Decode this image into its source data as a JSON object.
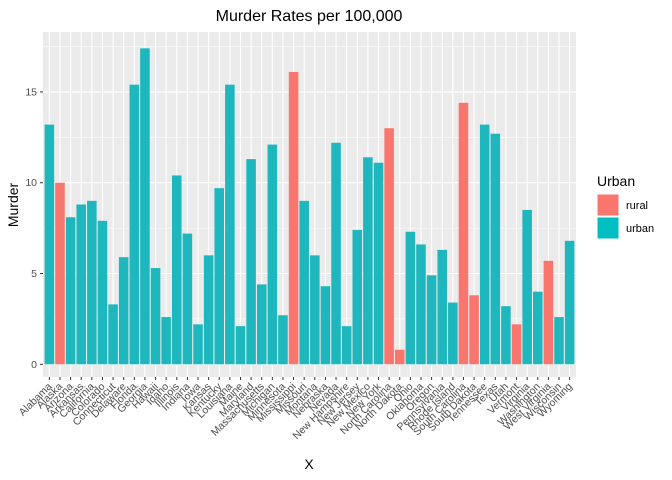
{
  "chart_data": {
    "type": "bar",
    "title": "Murder Rates per 100,000",
    "xlabel": "X",
    "ylabel": "Murder",
    "ylim": [
      -0.7,
      18.3
    ],
    "yticks": [
      0,
      5,
      10,
      15
    ],
    "grid": true,
    "legend": {
      "title": "Urban",
      "placement": "right",
      "entries": [
        {
          "label": "rural",
          "color": "#F8766D"
        },
        {
          "label": "urban",
          "color": "#00BFC4"
        }
      ]
    },
    "colors": {
      "rural": "#F8766D",
      "urban": "#1FB7BE",
      "panel": "#EBEBEB",
      "grid": "#FFFFFF"
    },
    "categories": [
      "Alabama",
      "Alaska",
      "Arizona",
      "Arkansas",
      "California",
      "Colorado",
      "Connecticut",
      "Delaware",
      "Florida",
      "Georgia",
      "Hawaii",
      "Idaho",
      "Illinois",
      "Indiana",
      "Iowa",
      "Kansas",
      "Kentucky",
      "Louisiana",
      "Maine",
      "Maryland",
      "Massachusetts",
      "Michigan",
      "Minnesota",
      "Mississippi",
      "Missouri",
      "Montana",
      "Nebraska",
      "Nevada",
      "New Hampshire",
      "New Jersey",
      "New Mexico",
      "New York",
      "North Carolina",
      "North Dakota",
      "Ohio",
      "Oklahoma",
      "Oregon",
      "Pennsylvania",
      "Rhode Island",
      "South Carolina",
      "South Dakota",
      "Tennessee",
      "Texas",
      "Utah",
      "Vermont",
      "Virginia",
      "Washington",
      "West Virginia",
      "Wisconsin",
      "Wyoming"
    ],
    "values": [
      13.2,
      10.0,
      8.1,
      8.8,
      9.0,
      7.9,
      3.3,
      5.9,
      15.4,
      17.4,
      5.3,
      2.6,
      10.4,
      7.2,
      2.2,
      6.0,
      9.7,
      15.4,
      2.1,
      11.3,
      4.4,
      12.1,
      2.7,
      16.1,
      9.0,
      6.0,
      4.3,
      12.2,
      2.1,
      7.4,
      11.4,
      11.1,
      13.0,
      0.8,
      7.3,
      6.6,
      4.9,
      6.3,
      3.4,
      14.4,
      3.8,
      13.2,
      12.7,
      3.2,
      2.2,
      8.5,
      4.0,
      5.7,
      2.6,
      6.8
    ],
    "groups": [
      "urban",
      "rural",
      "urban",
      "urban",
      "urban",
      "urban",
      "urban",
      "urban",
      "urban",
      "urban",
      "urban",
      "urban",
      "urban",
      "urban",
      "urban",
      "urban",
      "urban",
      "urban",
      "urban",
      "urban",
      "urban",
      "urban",
      "urban",
      "rural",
      "urban",
      "urban",
      "urban",
      "urban",
      "urban",
      "urban",
      "urban",
      "urban",
      "rural",
      "rural",
      "urban",
      "urban",
      "urban",
      "urban",
      "urban",
      "rural",
      "rural",
      "urban",
      "urban",
      "urban",
      "rural",
      "urban",
      "urban",
      "rural",
      "urban",
      "urban"
    ]
  }
}
